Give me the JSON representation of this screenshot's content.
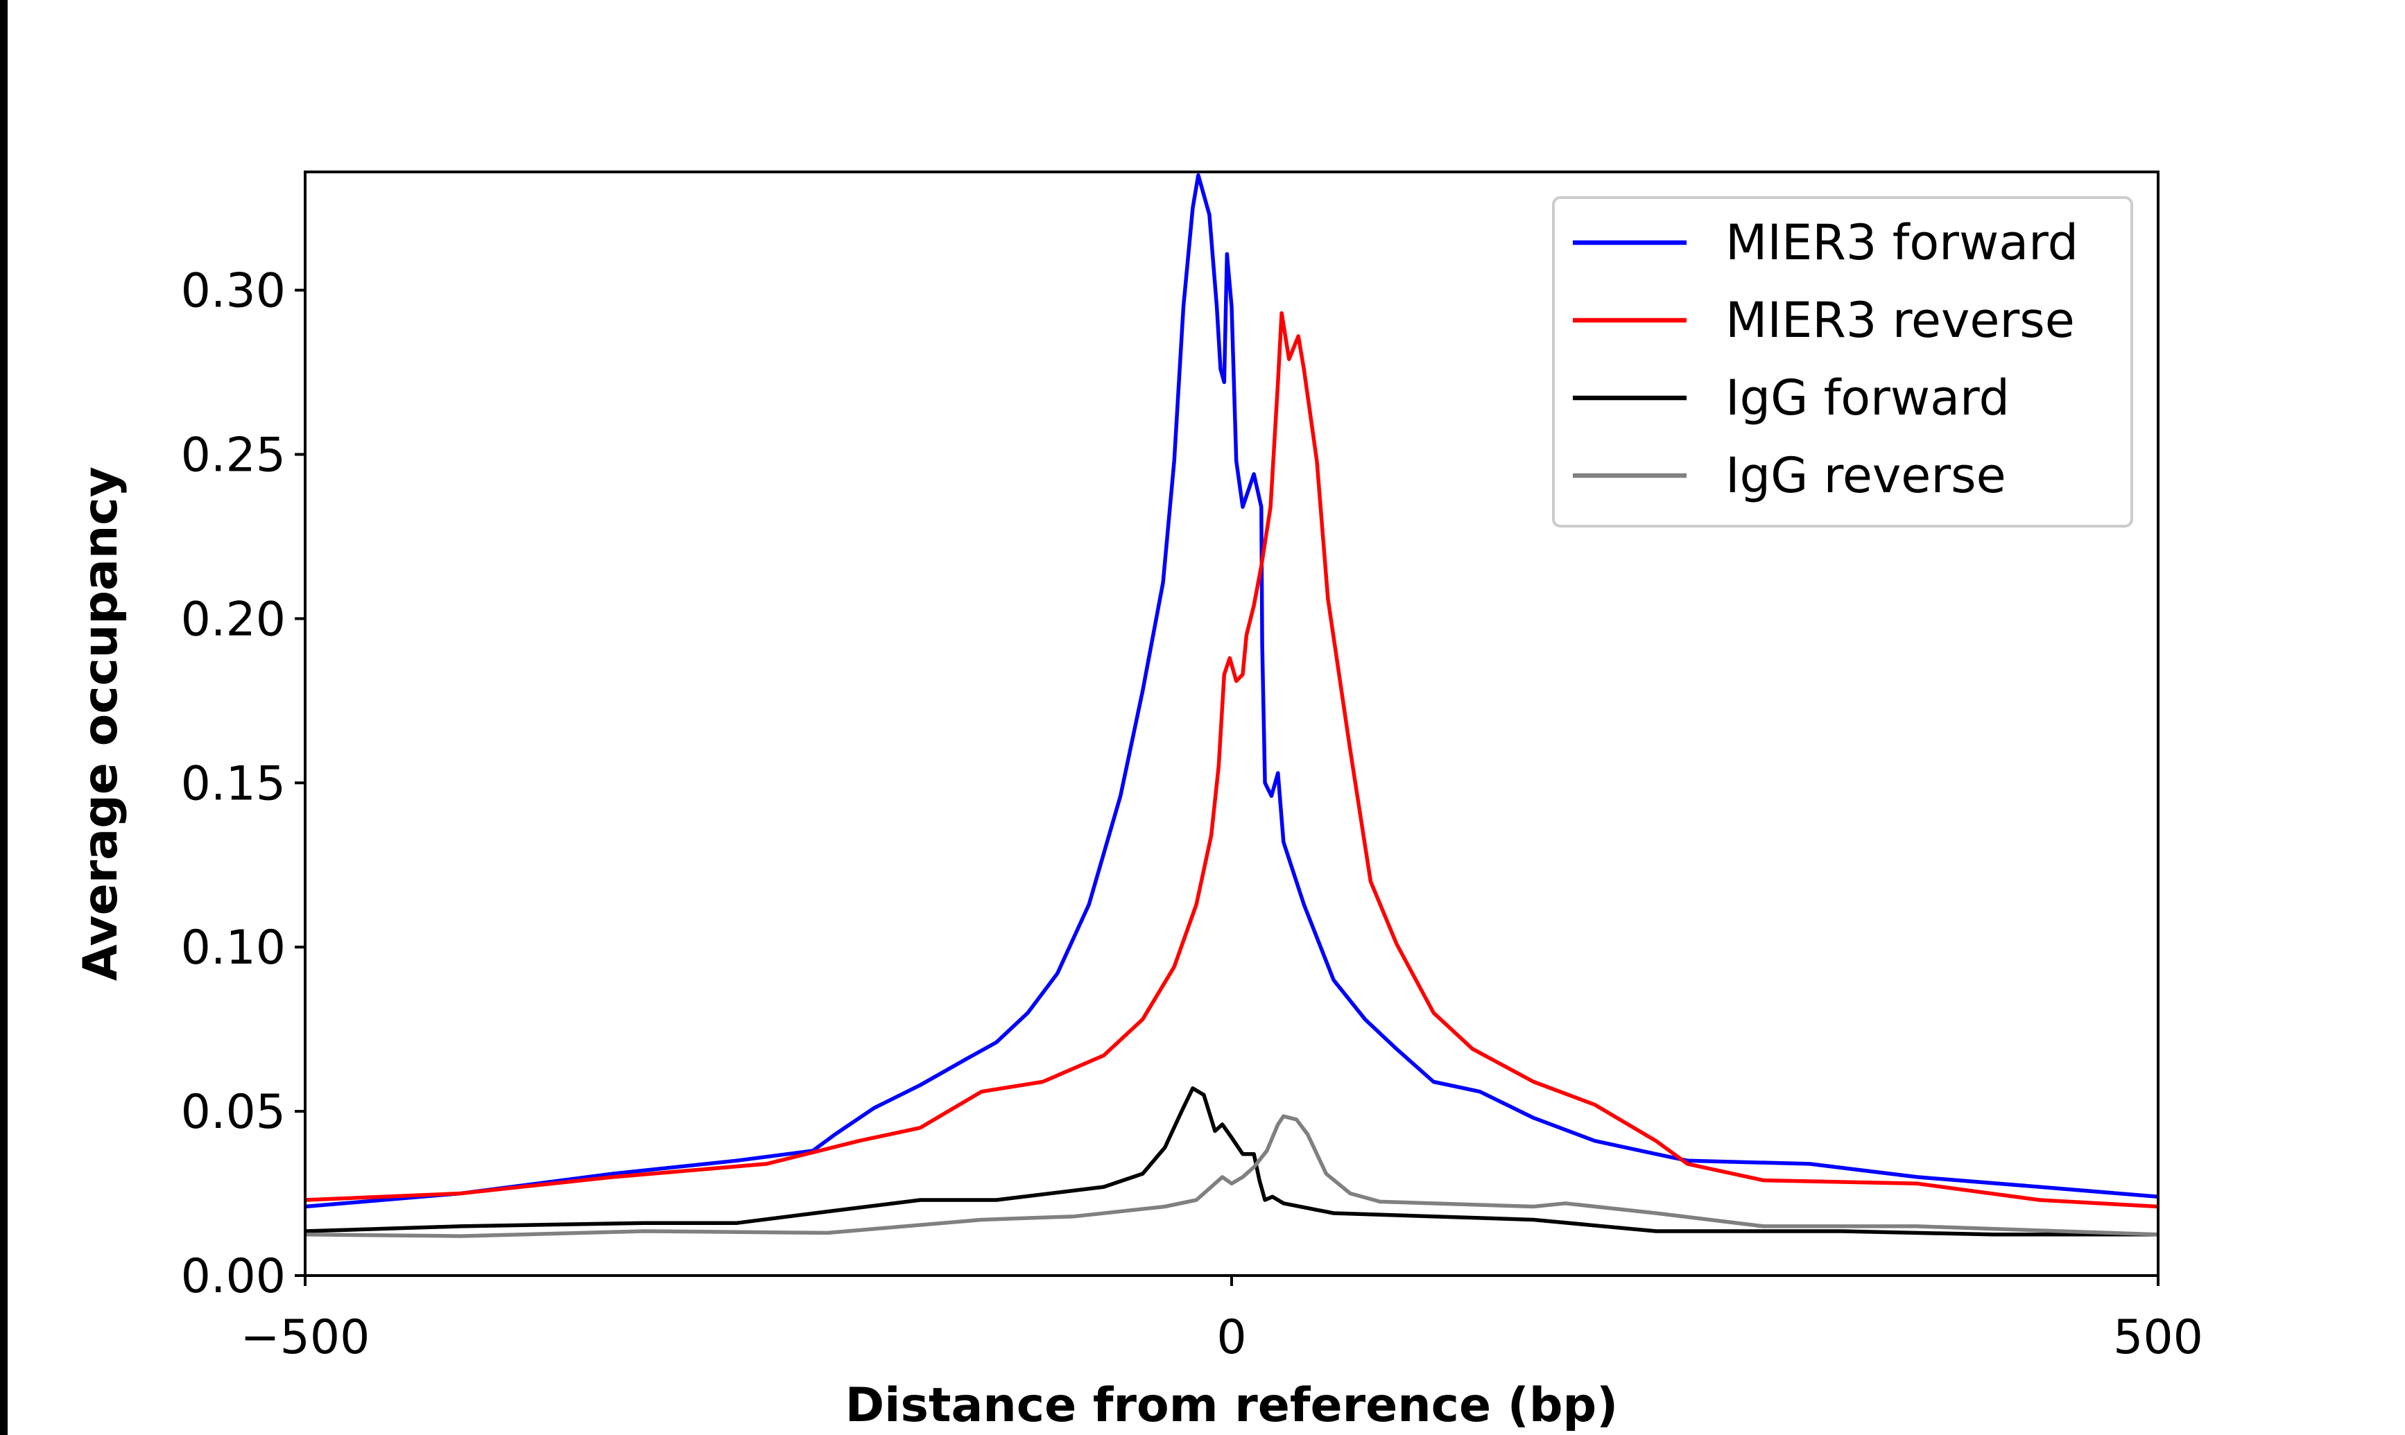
{
  "chart_data": {
    "type": "line",
    "title": "",
    "xlabel": "Distance from reference (bp)",
    "ylabel": "Average occupancy",
    "xlim": [
      -500,
      500
    ],
    "ylim": [
      0,
      0.336
    ],
    "xticks": [
      -500,
      0,
      500
    ],
    "xtick_labels": [
      "−500",
      "0",
      "500"
    ],
    "yticks": [
      0,
      0.05,
      0.1,
      0.15,
      0.2,
      0.25,
      0.3
    ],
    "ytick_labels": [
      "0.00",
      "0.05",
      "0.10",
      "0.15",
      "0.20",
      "0.25",
      "0.30"
    ],
    "grid": false,
    "legend_position": "top-right",
    "series": [
      {
        "name": "MIER3 forward",
        "color": "#0000ff",
        "points": [
          [
            -500,
            0.021
          ],
          [
            -416,
            0.025
          ],
          [
            -334,
            0.031
          ],
          [
            -267,
            0.035
          ],
          [
            -226,
            0.038
          ],
          [
            -214,
            0.043
          ],
          [
            -193,
            0.051
          ],
          [
            -168,
            0.058
          ],
          [
            -143,
            0.066
          ],
          [
            -127,
            0.071
          ],
          [
            -110,
            0.08
          ],
          [
            -94,
            0.092
          ],
          [
            -77,
            0.113
          ],
          [
            -60,
            0.146
          ],
          [
            -48,
            0.178
          ],
          [
            -37,
            0.211
          ],
          [
            -31,
            0.248
          ],
          [
            -26,
            0.295
          ],
          [
            -21,
            0.325
          ],
          [
            -18,
            0.335
          ],
          [
            -12,
            0.323
          ],
          [
            -8,
            0.295
          ],
          [
            -6,
            0.276
          ],
          [
            -4,
            0.272
          ],
          [
            -2.5,
            0.311
          ],
          [
            0,
            0.295
          ],
          [
            2.5,
            0.248
          ],
          [
            6,
            0.234
          ],
          [
            12,
            0.244
          ],
          [
            16,
            0.234
          ],
          [
            16.5,
            0.192
          ],
          [
            18,
            0.15
          ],
          [
            21.5,
            0.146
          ],
          [
            25,
            0.153
          ],
          [
            28,
            0.132
          ],
          [
            39,
            0.113
          ],
          [
            55,
            0.09
          ],
          [
            72,
            0.078
          ],
          [
            89,
            0.069
          ],
          [
            109,
            0.059
          ],
          [
            134,
            0.056
          ],
          [
            163,
            0.048
          ],
          [
            196,
            0.041
          ],
          [
            229,
            0.037
          ],
          [
            246,
            0.035
          ],
          [
            312,
            0.034
          ],
          [
            370,
            0.03
          ],
          [
            436,
            0.027
          ],
          [
            500,
            0.024
          ]
        ]
      },
      {
        "name": "MIER3 reverse",
        "color": "#ff0000",
        "points": [
          [
            -500,
            0.023
          ],
          [
            -416,
            0.025
          ],
          [
            -334,
            0.03
          ],
          [
            -251,
            0.034
          ],
          [
            -201,
            0.041
          ],
          [
            -168,
            0.045
          ],
          [
            -135,
            0.056
          ],
          [
            -102,
            0.059
          ],
          [
            -69,
            0.067
          ],
          [
            -48,
            0.078
          ],
          [
            -31,
            0.094
          ],
          [
            -19,
            0.113
          ],
          [
            -11,
            0.134
          ],
          [
            -7,
            0.155
          ],
          [
            -4,
            0.183
          ],
          [
            -1,
            0.188
          ],
          [
            2.5,
            0.181
          ],
          [
            6,
            0.183
          ],
          [
            8,
            0.195
          ],
          [
            12,
            0.204
          ],
          [
            16,
            0.216
          ],
          [
            21,
            0.234
          ],
          [
            25,
            0.272
          ],
          [
            27,
            0.293
          ],
          [
            31,
            0.279
          ],
          [
            36,
            0.286
          ],
          [
            39,
            0.276
          ],
          [
            46,
            0.248
          ],
          [
            52,
            0.206
          ],
          [
            64,
            0.16
          ],
          [
            75,
            0.12
          ],
          [
            89,
            0.101
          ],
          [
            109,
            0.08
          ],
          [
            130,
            0.069
          ],
          [
            163,
            0.059
          ],
          [
            196,
            0.052
          ],
          [
            229,
            0.041
          ],
          [
            246,
            0.034
          ],
          [
            287,
            0.029
          ],
          [
            370,
            0.028
          ],
          [
            436,
            0.023
          ],
          [
            500,
            0.021
          ]
        ]
      },
      {
        "name": "IgG forward",
        "color": "#000000",
        "points": [
          [
            -500,
            0.0135
          ],
          [
            -416,
            0.015
          ],
          [
            -317,
            0.016
          ],
          [
            -267,
            0.016
          ],
          [
            -218,
            0.0195
          ],
          [
            -168,
            0.023
          ],
          [
            -127,
            0.023
          ],
          [
            -69,
            0.027
          ],
          [
            -48,
            0.031
          ],
          [
            -36,
            0.039
          ],
          [
            -27,
            0.05
          ],
          [
            -21,
            0.057
          ],
          [
            -15,
            0.055
          ],
          [
            -9,
            0.044
          ],
          [
            -5,
            0.046
          ],
          [
            0,
            0.042
          ],
          [
            6,
            0.037
          ],
          [
            12,
            0.037
          ],
          [
            15,
            0.029
          ],
          [
            18,
            0.023
          ],
          [
            22,
            0.024
          ],
          [
            28,
            0.022
          ],
          [
            55,
            0.019
          ],
          [
            163,
            0.017
          ],
          [
            229,
            0.0135
          ],
          [
            329,
            0.0135
          ],
          [
            411,
            0.0125
          ],
          [
            500,
            0.0125
          ]
        ]
      },
      {
        "name": "IgG reverse",
        "color": "#808080",
        "points": [
          [
            -500,
            0.0125
          ],
          [
            -416,
            0.012
          ],
          [
            -317,
            0.0135
          ],
          [
            -218,
            0.013
          ],
          [
            -135,
            0.017
          ],
          [
            -85,
            0.018
          ],
          [
            -36,
            0.021
          ],
          [
            -19,
            0.023
          ],
          [
            -11,
            0.027
          ],
          [
            -5,
            0.03
          ],
          [
            0,
            0.028
          ],
          [
            6,
            0.03
          ],
          [
            12,
            0.033
          ],
          [
            19,
            0.038
          ],
          [
            25,
            0.046
          ],
          [
            28,
            0.0485
          ],
          [
            35,
            0.0475
          ],
          [
            41,
            0.043
          ],
          [
            51,
            0.031
          ],
          [
            64,
            0.025
          ],
          [
            80,
            0.0225
          ],
          [
            163,
            0.021
          ],
          [
            180,
            0.022
          ],
          [
            229,
            0.019
          ],
          [
            287,
            0.015
          ],
          [
            370,
            0.015
          ],
          [
            500,
            0.0125
          ]
        ]
      }
    ]
  }
}
